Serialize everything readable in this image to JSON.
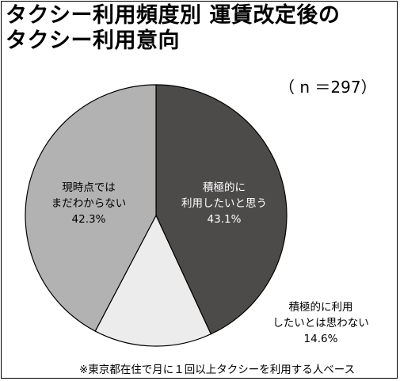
{
  "chart_data": {
    "type": "pie",
    "title_line1": "タクシー利用頻度別 運賃改定後の",
    "title_line2": "タクシー利用意向",
    "n_label": "（ n ＝297）",
    "slices": [
      {
        "label_lines": [
          "積極的に",
          "利用したいと思う"
        ],
        "pct_label": "43.1%",
        "value": 43.1,
        "color": "#4d4a4a",
        "text_color": "#ffffff"
      },
      {
        "label_lines": [
          "積極的に利用",
          "したいとは思わない"
        ],
        "pct_label": "14.6%",
        "value": 14.6,
        "color": "#ececec",
        "text_color": "#000000"
      },
      {
        "label_lines": [
          "現時点では",
          "まだわからない"
        ],
        "pct_label": "42.3%",
        "value": 42.3,
        "color": "#b2b2b2",
        "text_color": "#000000"
      }
    ],
    "footnote": "※東京都在住で月に１回以上タクシーを利用する人ベース"
  }
}
